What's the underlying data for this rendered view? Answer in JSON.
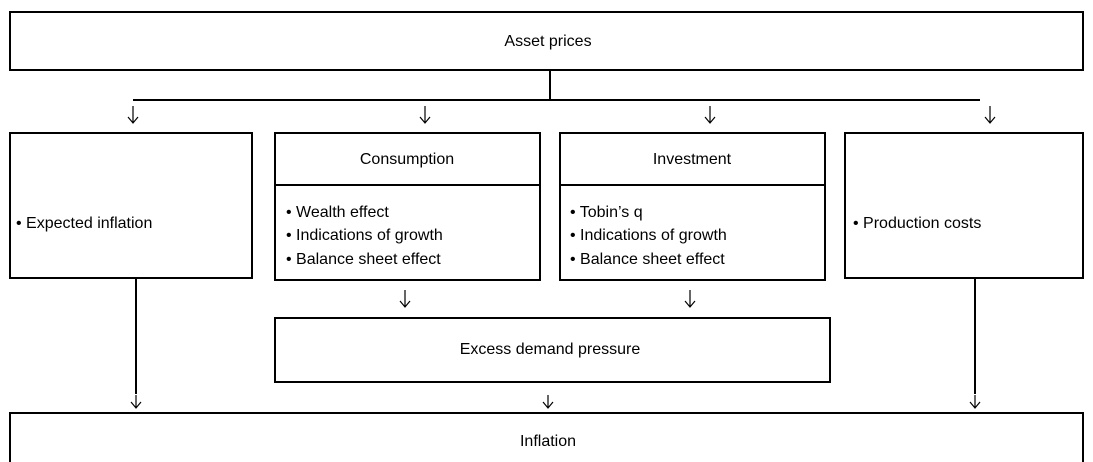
{
  "nodes": [
    {
      "label": "Asset prices"
    },
    {
      "label": "• Expected inflation"
    },
    {
      "label": "Consumption",
      "items": [
        "• Wealth effect",
        "• Indications of growth",
        "• Balance sheet effect"
      ]
    },
    {
      "label": "Investment",
      "items": [
        "• Tobin’s q",
        "• Indications of growth",
        "• Balance sheet effect"
      ]
    },
    {
      "label": "• Production costs"
    },
    {
      "label": "Excess demand pressure"
    },
    {
      "label": "Inflation"
    }
  ]
}
